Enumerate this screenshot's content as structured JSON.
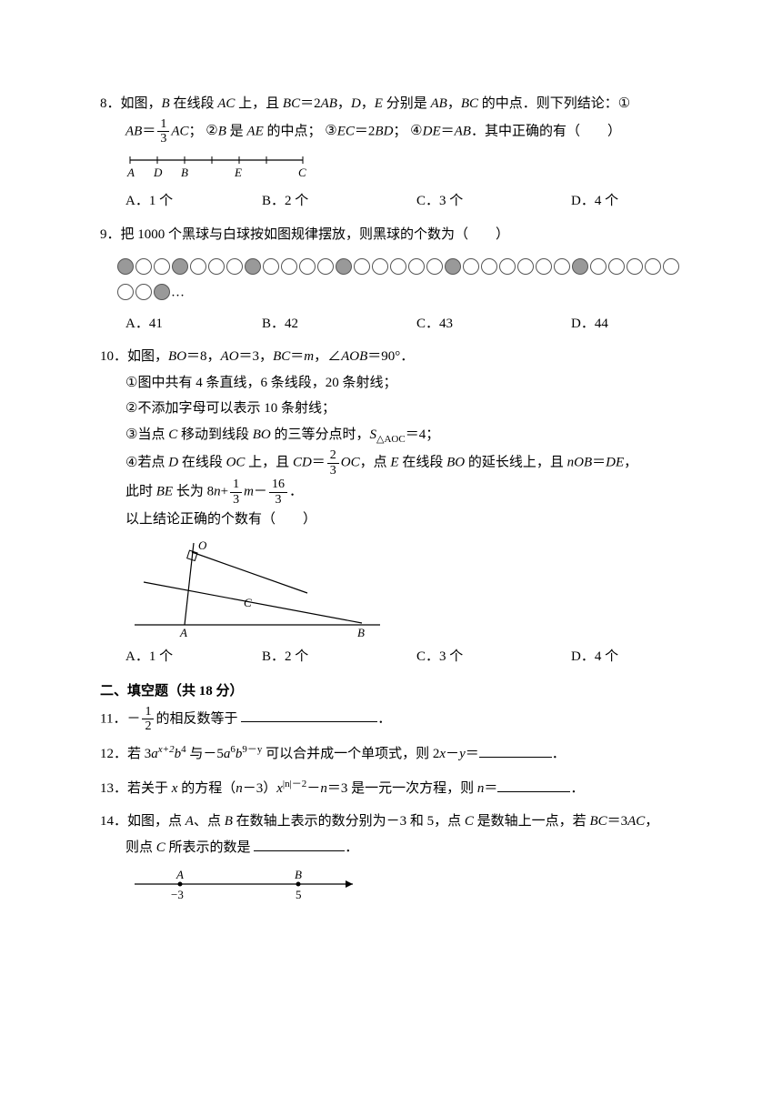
{
  "q8": {
    "num": "8．",
    "text_a": "如图，",
    "text_b": " 在线段 ",
    "text_c": " 上，且 ",
    "text_d": "＝2",
    "text_e": "，",
    "text_f": " 分别是 ",
    "text_g": " 的中点．则下列结论：",
    "italic_B": "B",
    "italic_AC": "AC",
    "italic_BC": "BC",
    "italic_AB": "AB",
    "italic_D": "D",
    "italic_E": "E",
    "c1": "①",
    "s1_a": "＝",
    "s1_b": "；",
    "s1_frac_n": "1",
    "s1_frac_d": "3",
    "c2": "②",
    "s2_a": " 是 ",
    "s2_b": " 的中点；",
    "italic_AE": "AE",
    "c3": "③",
    "s3_a": "＝2",
    "s3_b": "；",
    "italic_EC": "EC",
    "italic_BD": "BD",
    "c4": "④",
    "s4_a": "＝",
    "s4_b": "．其中正确的有（　　）",
    "italic_DE": "DE",
    "optA": "A．1 个",
    "optB": "B．2 个",
    "optC": "C．3 个",
    "optD": "D．4 个",
    "labelA": "A",
    "labelD": "D",
    "labelB": "B",
    "labelE": "E",
    "labelC": "C"
  },
  "q9": {
    "num": "9．",
    "text": "把 1000 个黑球与白球按如图规律摆放，则黑球的个数为（　　）",
    "pattern": [
      1,
      0,
      0,
      1,
      0,
      0,
      0,
      1,
      0,
      0,
      0,
      0,
      1,
      0,
      0,
      0,
      0,
      0,
      1,
      0,
      0,
      0,
      0,
      0,
      0,
      1,
      0,
      0,
      0,
      0,
      0,
      0,
      0,
      1
    ],
    "dots": "…",
    "optA": "A．41",
    "optB": "B．42",
    "optC": "C．43",
    "optD": "D．44"
  },
  "q10": {
    "num": "10．",
    "text_a": "如图，",
    "text_b": "＝8，",
    "text_c": "＝3，",
    "text_d": "＝",
    "text_e": "，∠",
    "text_f": "＝90°．",
    "italic_BO": "BO",
    "italic_AO": "AO",
    "italic_BC": "BC",
    "italic_m": "m",
    "italic_AOB": "AOB",
    "c1": "①",
    "s1": "图中共有 4 条直线，6 条线段，20 条射线；",
    "c2": "②",
    "s2": "不添加字母可以表示 10 条射线；",
    "c3": "③",
    "s3_a": "当点 ",
    "s3_b": " 移动到线段 ",
    "s3_c": " 的三等分点时，",
    "s3_d": "＝4；",
    "italic_C": "C",
    "italic_S": "S",
    "sub_AOC": "△AOC",
    "c4": "④",
    "s4_a": "若点 ",
    "s4_b": " 在线段 ",
    "s4_c": " 上，且 ",
    "s4_d": "＝",
    "s4_frac_n": "2",
    "s4_frac_d": "3",
    "s4_e": "，点 ",
    "s4_f": " 在线段 ",
    "s4_g": " 的延长线上，且 ",
    "s4_h": "＝",
    "s4_i": "，",
    "italic_D": "D",
    "italic_OC": "OC",
    "italic_CD": "CD",
    "italic_E": "E",
    "italic_nOB": "nOB",
    "italic_DE_": "DE",
    "s5_a": "此时 ",
    "s5_b": " 长为 8",
    "s5_c": "+",
    "s5_fr1_n": "1",
    "s5_fr1_d": "3",
    "s5_d": "－",
    "s5_fr2_n": "16",
    "s5_fr2_d": "3",
    "s5_e": "．",
    "italic_BE": "BE",
    "italic_n": "n",
    "conclusion": "以上结论正确的个数有（　　）",
    "optA": "A．1 个",
    "optB": "B．2 个",
    "optC": "C．3 个",
    "optD": "D．4 个",
    "figO": "O",
    "figC": "C",
    "figA": "A",
    "figB": "B"
  },
  "section2": "二、填空题（共 18 分）",
  "q11": {
    "num": "11．",
    "text_a": "－",
    "frac_n": "1",
    "frac_d": "2",
    "text_b": "的相反数等于 ",
    "text_c": "．"
  },
  "q12": {
    "num": "12．",
    "text_a": "若 3",
    "italic_a": "a",
    "sup_x2": "x+2",
    "italic_b": "b",
    "sup_4": "4",
    "text_b": " 与－5",
    "sup_6": "6",
    "sup_9y": "9－y",
    "text_c": " 可以合并成一个单项式，则 2",
    "italic_x": "x",
    "text_d": "－",
    "italic_y": "y",
    "text_e": "＝",
    "text_f": "．"
  },
  "q13": {
    "num": "13．",
    "text_a": "若关于 ",
    "italic_x": "x",
    "text_b": " 的方程（",
    "italic_n": "n",
    "text_c": "－3）",
    "sup": "|n|－2",
    "text_d": "－",
    "text_e": "＝3 是一元一次方程，则 ",
    "text_f": "＝",
    "text_g": "．"
  },
  "q14": {
    "num": "14．",
    "text_a": "如图，点 ",
    "italic_A": "A",
    "text_b": "、点 ",
    "italic_B": "B",
    "text_c": " 在数轴上表示的数分别为－3 和 5，点 ",
    "italic_C": "C",
    "text_d": " 是数轴上一点，若 ",
    "italic_BC": "BC",
    "text_e": "＝3",
    "italic_AC": "AC",
    "text_f": "，",
    "text_g": "则点 ",
    "text_h": " 所表示的数是 ",
    "text_i": "．",
    "figA": "A",
    "figB": "B",
    "figM3": "−3",
    "fig5": "5"
  }
}
